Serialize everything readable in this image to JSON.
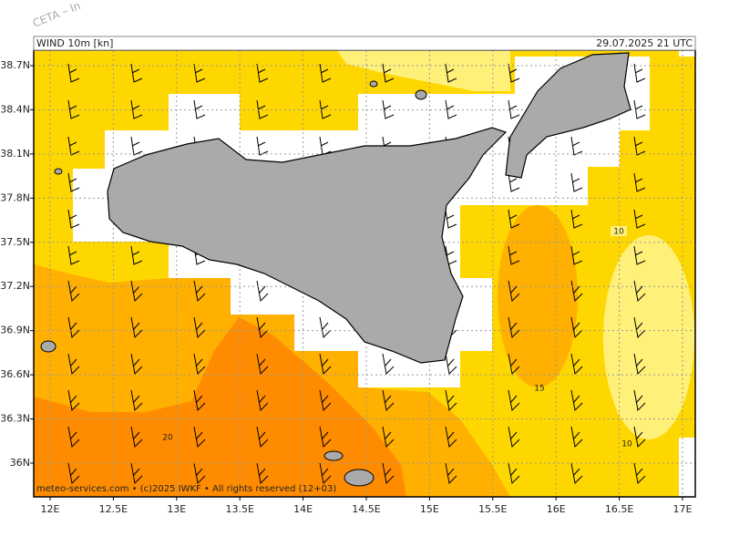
{
  "watermark": "CETA – In",
  "header": {
    "left": "WIND  10m  [kn]",
    "right": "29.07.2025  21  UTC"
  },
  "x_ticks": [
    {
      "value": 12,
      "label": "12E"
    },
    {
      "value": 12.5,
      "label": "12.5E"
    },
    {
      "value": 13,
      "label": "13E"
    },
    {
      "value": 13.5,
      "label": "13.5E"
    },
    {
      "value": 14,
      "label": "14E"
    },
    {
      "value": 14.5,
      "label": "14.5E"
    },
    {
      "value": 15,
      "label": "15E"
    },
    {
      "value": 15.5,
      "label": "15.5E"
    },
    {
      "value": 16,
      "label": "16E"
    },
    {
      "value": 16.5,
      "label": "16.5E"
    },
    {
      "value": 17,
      "label": "17E"
    }
  ],
  "y_ticks": [
    {
      "value": 36,
      "label": "36N"
    },
    {
      "value": 36.3,
      "label": "36.3N"
    },
    {
      "value": 36.6,
      "label": "36.6N"
    },
    {
      "value": 36.9,
      "label": "36.9N"
    },
    {
      "value": 37.2,
      "label": "37.2N"
    },
    {
      "value": 37.5,
      "label": "37.5N"
    },
    {
      "value": 37.8,
      "label": "37.8N"
    },
    {
      "value": 38.1,
      "label": "38.1N"
    },
    {
      "value": 38.4,
      "label": "38.4N"
    },
    {
      "value": 38.7,
      "label": "38.7N"
    }
  ],
  "contour_labels": [
    "10",
    "15",
    "20",
    "10"
  ],
  "footer": "meteo-services.com • (c)2025 IWKF • All rights reserved (12+03)"
}
